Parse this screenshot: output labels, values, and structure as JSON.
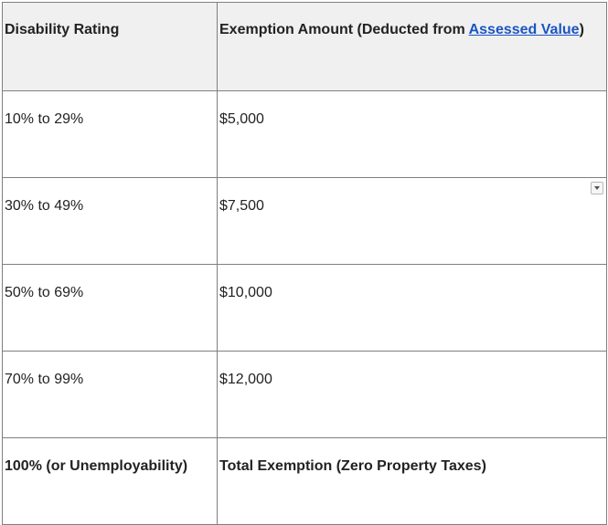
{
  "table": {
    "headers": {
      "rating": "Disability Rating",
      "amount_prefix": "Exemption Amount (Deducted from ",
      "amount_link": "Assessed Value",
      "amount_suffix": ")"
    },
    "rows": [
      {
        "rating": "10% to 29%",
        "amount": "$5,000"
      },
      {
        "rating": "30% to 49%",
        "amount": "$7,500"
      },
      {
        "rating": "50% to 69%",
        "amount": "$10,000"
      },
      {
        "rating": "70% to 99%",
        "amount": "$12,000"
      },
      {
        "rating": "100% (or Unemployability)",
        "amount": "Total Exemption (Zero Property Taxes)"
      }
    ]
  },
  "icons": {
    "dropdown": "chevron-down-icon"
  }
}
